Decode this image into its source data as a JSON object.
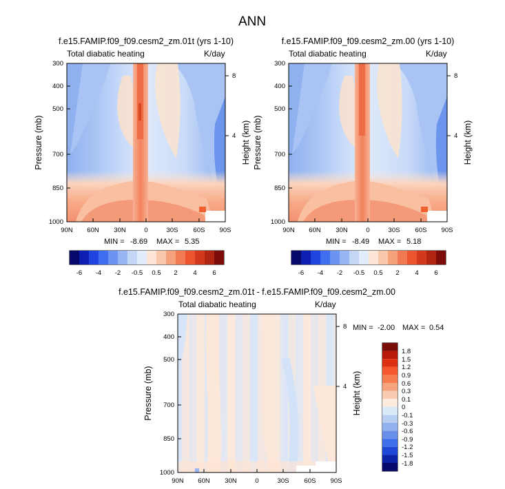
{
  "suptitle": "ANN",
  "chart_data": [
    {
      "type": "heatmap",
      "id": "panel1",
      "title": "f.e15.FAMIP.f09_f09.cesm2_zm.01t (yrs 1-10)",
      "left_label": "Total diabatic heating",
      "right_label": "K/day",
      "xlabel": "",
      "ylabel": "Pressure (mb)",
      "ylabel_right": "Height (km)",
      "x_ticks": [
        "90N",
        "60N",
        "30N",
        "0",
        "30S",
        "60S",
        "90S"
      ],
      "y_ticks": [
        "300",
        "400",
        "500",
        "700",
        "850",
        "1000"
      ],
      "y_ticks_right": [
        "8",
        "4"
      ],
      "min_label": "MIN =",
      "min_value": "-8.69",
      "max_label": "MAX =",
      "max_value": "5.35",
      "colorbar_labels": [
        "-6",
        "-4",
        "-2",
        "-0.5",
        "0.5",
        "2",
        "4",
        "6"
      ]
    },
    {
      "type": "heatmap",
      "id": "panel2",
      "title": "f.e15.FAMIP.f09_f09.cesm2_zm.00 (yrs 1-10)",
      "left_label": "Total diabatic heating",
      "right_label": "K/day",
      "xlabel": "",
      "ylabel": "Pressure (mb)",
      "ylabel_right": "Height (km)",
      "x_ticks": [
        "90N",
        "60N",
        "30N",
        "0",
        "30S",
        "60S",
        "90S"
      ],
      "y_ticks": [
        "300",
        "400",
        "500",
        "700",
        "850",
        "1000"
      ],
      "y_ticks_right": [
        "8",
        "4"
      ],
      "min_label": "MIN =",
      "min_value": "-8.49",
      "max_label": "MAX =",
      "max_value": "5.18",
      "colorbar_labels": [
        "-6",
        "-4",
        "-2",
        "-0.5",
        "0.5",
        "2",
        "4",
        "6"
      ]
    },
    {
      "type": "heatmap",
      "id": "panel3",
      "title": "f.e15.FAMIP.f09_f09.cesm2_zm.01t - f.e15.FAMIP.f09_f09.cesm2_zm.00",
      "left_label": "Total diabatic heating",
      "right_label": "K/day",
      "xlabel": "",
      "ylabel": "Pressure (mb)",
      "ylabel_right": "Height (km)",
      "x_ticks": [
        "90N",
        "60N",
        "30N",
        "0",
        "30S",
        "60S",
        "90S"
      ],
      "y_ticks": [
        "300",
        "400",
        "500",
        "700",
        "850",
        "1000"
      ],
      "y_ticks_right": [
        "8",
        "4"
      ],
      "min_label": "MIN =",
      "min_value": "-2.00",
      "max_label": "MAX =",
      "max_value": "0.54",
      "colorbar_labels": [
        "1.8",
        "1.5",
        "1.2",
        "0.9",
        "0.6",
        "0.3",
        "0.1",
        "0",
        "-0.1",
        "-0.3",
        "-0.6",
        "-0.9",
        "-1.2",
        "-1.5",
        "-1.8"
      ]
    }
  ],
  "colors": {
    "full_scale": [
      "#08086b",
      "#0c1fb0",
      "#1f44e0",
      "#3f6ef0",
      "#6b93f2",
      "#98b5f4",
      "#c3d6f6",
      "#e2ecfb",
      "#fde6d6",
      "#f9c7aa",
      "#f6a17c",
      "#f27a52",
      "#ea5530",
      "#d2381c",
      "#b02512",
      "#7c0c0a"
    ],
    "diff_scale": [
      "#7a0c0a",
      "#b8170c",
      "#dd2f12",
      "#f6572c",
      "#f57c4f",
      "#f6a37f",
      "#f9ccb2",
      "#fdeade",
      "#dbeaf9",
      "#b8cff2",
      "#92b2ee",
      "#6a90ec",
      "#3f6eea",
      "#1f47d6",
      "#0c24a8",
      "#06086a"
    ]
  }
}
